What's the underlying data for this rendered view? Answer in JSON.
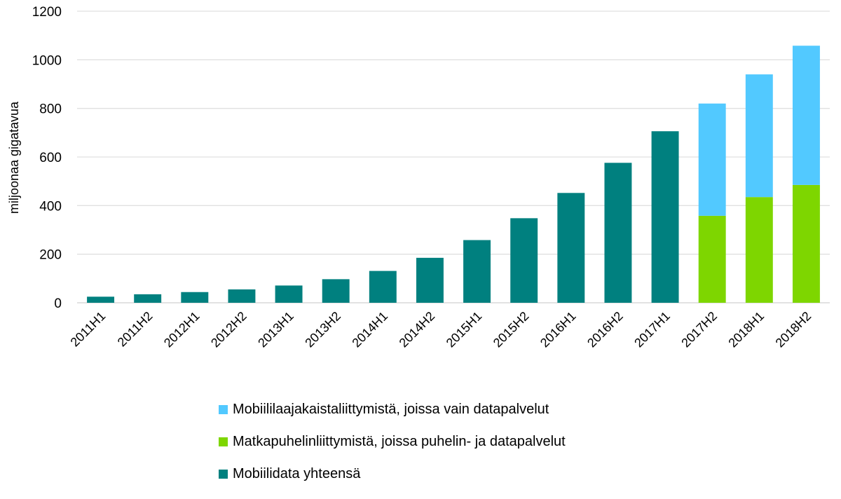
{
  "chart_data": {
    "type": "bar",
    "stacked": true,
    "title": "",
    "xlabel": "",
    "ylabel": "miljoonaa gigatavua",
    "ylim": [
      0,
      1200
    ],
    "yticks": [
      0,
      200,
      400,
      600,
      800,
      1000,
      1200
    ],
    "grid": true,
    "legend_position": "bottom",
    "categories": [
      "2011H1",
      "2011H2",
      "2012H1",
      "2012H2",
      "2013H1",
      "2013H2",
      "2014H1",
      "2014H2",
      "2015H1",
      "2015H2",
      "2016H1",
      "2016H2",
      "2017H1",
      "2017H2",
      "2018H1",
      "2018H2"
    ],
    "series": [
      {
        "name": "Mobiilidata yhteensä",
        "color": "#00807F",
        "values": [
          25,
          35,
          44,
          55,
          71,
          97,
          131,
          185,
          258,
          348,
          452,
          576,
          706,
          null,
          null,
          null
        ]
      },
      {
        "name": "Matkapuhelinliittymistä, joissa puhelin- ja datapalvelut",
        "color": "#7ED600",
        "values": [
          null,
          null,
          null,
          null,
          null,
          null,
          null,
          null,
          null,
          null,
          null,
          null,
          null,
          358,
          435,
          485
        ]
      },
      {
        "name": "Mobiililaajakaistaliittymistä, joissa vain datapalvelut",
        "color": "#52C9FF",
        "values": [
          null,
          null,
          null,
          null,
          null,
          null,
          null,
          null,
          null,
          null,
          null,
          null,
          null,
          462,
          505,
          573
        ]
      }
    ],
    "legend": [
      {
        "label": "Mobiililaajakaistaliittymistä, joissa vain datapalvelut",
        "color": "#52C9FF"
      },
      {
        "label": "Matkapuhelinliittymistä, joissa puhelin- ja datapalvelut",
        "color": "#7ED600"
      },
      {
        "label": "Mobiilidata yhteensä",
        "color": "#00807F"
      }
    ]
  }
}
